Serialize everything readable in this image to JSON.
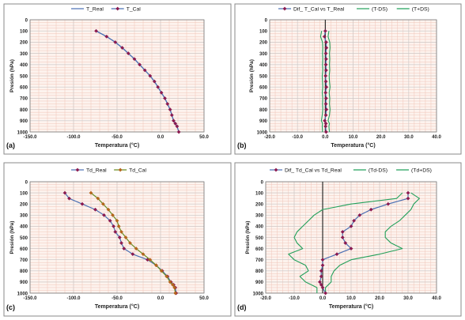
{
  "chart_data": [
    {
      "type": "line",
      "panel_label": "(a)",
      "xlabel": "Temperatura (°C)",
      "ylabel": "Presión (hPa)",
      "xlim": [
        -150,
        50
      ],
      "ylim": [
        1000,
        0
      ],
      "y_inverted": true,
      "xticks": [
        -150,
        -100,
        -50,
        0,
        50
      ],
      "xtick_labels": [
        "-150.0",
        "-100.0",
        "-50.0",
        "0.0",
        "50.0"
      ],
      "yticks": [
        0,
        100,
        200,
        300,
        400,
        500,
        600,
        700,
        800,
        900,
        1000
      ],
      "ytick_labels": [
        "0",
        "100",
        "200",
        "300",
        "400",
        "500",
        "600",
        "700",
        "800",
        "900",
        "1000"
      ],
      "grid": true,
      "legend_position": "top",
      "colors": {
        "T_Real": "#4a6fb3",
        "T_Cal": "#8b1a4f"
      },
      "series": [
        {
          "name": "T_Real",
          "marker": "none",
          "x": [
            -74,
            -62,
            -52,
            -44,
            -37,
            -30,
            -24,
            -18,
            -12,
            -7,
            -3,
            1,
            5,
            8,
            11,
            13,
            15,
            17,
            19,
            21
          ],
          "y": [
            100,
            150,
            200,
            250,
            300,
            350,
            400,
            450,
            500,
            550,
            600,
            650,
            700,
            750,
            800,
            850,
            900,
            925,
            950,
            1000
          ]
        },
        {
          "name": "T_Cal",
          "marker": "diamond",
          "x": [
            -74,
            -62,
            -52,
            -44,
            -37,
            -30,
            -24,
            -18,
            -12,
            -7,
            -3,
            1,
            5,
            8,
            11,
            13,
            15,
            17,
            19,
            21
          ],
          "y": [
            100,
            150,
            200,
            250,
            300,
            350,
            400,
            450,
            500,
            550,
            600,
            650,
            700,
            750,
            800,
            850,
            900,
            925,
            950,
            1000
          ]
        }
      ]
    },
    {
      "type": "line",
      "panel_label": "(b)",
      "xlabel": "Temperatura (°C)",
      "ylabel": "Presión (hPa)",
      "xlim": [
        -20,
        40
      ],
      "ylim": [
        1000,
        0
      ],
      "y_inverted": true,
      "xticks": [
        -20,
        -10,
        0,
        10,
        20,
        30,
        40
      ],
      "xtick_labels": [
        "-20.0",
        "-10.0",
        "0.0",
        "10.0",
        "20.0",
        "30.0",
        "40.0"
      ],
      "yticks": [
        0,
        100,
        200,
        300,
        400,
        500,
        600,
        700,
        800,
        900,
        1000
      ],
      "ytick_labels": [
        "0",
        "100",
        "200",
        "300",
        "400",
        "500",
        "600",
        "700",
        "800",
        "900",
        "1000"
      ],
      "grid": true,
      "legend_position": "top",
      "zero_line": true,
      "colors": {
        "Dif": "#4a6fb3",
        "Dif_marker": "#8b1a4f",
        "band": "#22a05a"
      },
      "series": [
        {
          "name": "Dif_ T_Cal vs T_Real",
          "marker": "diamond",
          "x": [
            0,
            -0.3,
            0.3,
            0.4,
            0.2,
            0.3,
            0.2,
            0.3,
            0.1,
            0.2,
            0.4,
            0.1,
            0.3,
            0.2,
            0.4,
            0.2,
            -0.2,
            0.2,
            0.1,
            0.3
          ],
          "y": [
            100,
            150,
            200,
            250,
            300,
            350,
            400,
            450,
            500,
            550,
            600,
            650,
            700,
            750,
            800,
            850,
            900,
            925,
            950,
            1000
          ]
        },
        {
          "name": "(T-DS)",
          "marker": "none",
          "x": [
            -1.3,
            -1.7,
            -1.0,
            -0.9,
            -1.0,
            -0.9,
            -1.0,
            -0.9,
            -1.1,
            -1.0,
            -0.9,
            -1.1,
            -0.9,
            -1.0,
            -0.9,
            -1.1,
            -1.4,
            -1.0,
            -1.1,
            -1.0
          ],
          "y": [
            100,
            150,
            200,
            250,
            300,
            350,
            400,
            450,
            500,
            550,
            600,
            650,
            700,
            750,
            800,
            850,
            900,
            925,
            950,
            1000
          ]
        },
        {
          "name": "(T+DS)",
          "marker": "none",
          "x": [
            1.3,
            1.0,
            1.6,
            1.7,
            1.5,
            1.6,
            1.5,
            1.6,
            1.4,
            1.5,
            1.7,
            1.4,
            1.6,
            1.5,
            1.7,
            1.5,
            1.0,
            1.5,
            1.3,
            1.5
          ],
          "y": [
            100,
            150,
            200,
            250,
            300,
            350,
            400,
            450,
            500,
            550,
            600,
            650,
            700,
            750,
            800,
            850,
            900,
            925,
            950,
            1000
          ]
        }
      ]
    },
    {
      "type": "line",
      "panel_label": "(c)",
      "xlabel": "Temperatura (°C)",
      "ylabel": "Presión (hPa)",
      "xlim": [
        -150,
        50
      ],
      "ylim": [
        1000,
        0
      ],
      "y_inverted": true,
      "xticks": [
        -150,
        -100,
        -50,
        0,
        50
      ],
      "xtick_labels": [
        "-150.0",
        "-100.0",
        "-50.0",
        "0.0",
        "50.0"
      ],
      "yticks": [
        0,
        100,
        200,
        300,
        400,
        500,
        600,
        700,
        800,
        900,
        1000
      ],
      "ytick_labels": [
        "0",
        "100",
        "200",
        "300",
        "400",
        "500",
        "600",
        "700",
        "800",
        "900",
        "1000"
      ],
      "grid": true,
      "legend_position": "top",
      "colors": {
        "Td_Real": "#4a6fb3",
        "Td_Real_marker": "#8b1a4f",
        "Td_Cal": "#6b8e23",
        "Td_Cal_marker": "#b5651d"
      },
      "series": [
        {
          "name": "Td_Real",
          "marker": "diamond",
          "x": [
            -110,
            -105,
            -90,
            -75,
            -65,
            -58,
            -54,
            -52,
            -47,
            -45,
            -42,
            -32,
            -15,
            -5,
            2,
            8,
            12,
            15,
            17,
            18
          ],
          "y": [
            100,
            150,
            200,
            250,
            300,
            350,
            400,
            450,
            500,
            550,
            600,
            650,
            700,
            750,
            800,
            850,
            900,
            925,
            950,
            1000
          ]
        },
        {
          "name": "Td_Cal",
          "marker": "diamond",
          "x": [
            -80,
            -72,
            -66,
            -60,
            -55,
            -50,
            -48,
            -45,
            -40,
            -35,
            -28,
            -20,
            -12,
            -5,
            1,
            7,
            11,
            14,
            16,
            17
          ],
          "y": [
            100,
            150,
            200,
            250,
            300,
            350,
            400,
            450,
            500,
            550,
            600,
            650,
            700,
            750,
            800,
            850,
            900,
            925,
            950,
            1000
          ]
        }
      ]
    },
    {
      "type": "line",
      "panel_label": "(d)",
      "xlabel": "Temperatura (°C)",
      "ylabel": "Presión (hPa)",
      "xlim": [
        -20,
        40
      ],
      "ylim": [
        1000,
        0
      ],
      "y_inverted": true,
      "xticks": [
        -20,
        -10,
        0,
        10,
        20,
        30,
        40
      ],
      "xtick_labels": [
        "-20.0",
        "-10.0",
        "0.0",
        "10.0",
        "20.0",
        "30.0",
        "40.0"
      ],
      "yticks": [
        0,
        100,
        200,
        300,
        400,
        500,
        600,
        700,
        800,
        900,
        1000
      ],
      "ytick_labels": [
        "0",
        "100",
        "200",
        "300",
        "400",
        "500",
        "600",
        "700",
        "800",
        "900",
        "1000"
      ],
      "grid": true,
      "legend_position": "top",
      "zero_line": true,
      "colors": {
        "Dif": "#4a6fb3",
        "Dif_marker": "#8b1a4f",
        "band": "#22a05a"
      },
      "series": [
        {
          "name": "Dif_ Td_Cal vs Td_Real",
          "marker": "diamond",
          "x": [
            30,
            30,
            23,
            17,
            13,
            11,
            10,
            7,
            7,
            8,
            10,
            5,
            0,
            0,
            -0.5,
            -0.5,
            -1,
            -0.5,
            0,
            1
          ],
          "y": [
            100,
            150,
            200,
            250,
            300,
            350,
            400,
            450,
            500,
            550,
            600,
            650,
            700,
            750,
            800,
            850,
            900,
            925,
            950,
            1000
          ]
        },
        {
          "name": "(Td-DS)",
          "marker": "none",
          "x": [
            28,
            26,
            10,
            0,
            -3,
            -5,
            -7,
            -9,
            -10,
            -9,
            -7,
            -12,
            -10,
            -6,
            -5,
            -8,
            -6,
            -4,
            -2,
            -2
          ],
          "y": [
            100,
            150,
            200,
            250,
            300,
            350,
            400,
            450,
            500,
            550,
            600,
            650,
            700,
            750,
            800,
            850,
            900,
            925,
            950,
            1000
          ]
        },
        {
          "name": "(Td+DS)",
          "marker": "none",
          "x": [
            31,
            34,
            32,
            31,
            29,
            27,
            24,
            22,
            22,
            24,
            28,
            20,
            10,
            6,
            4,
            3,
            3,
            2,
            1,
            1
          ],
          "y": [
            100,
            150,
            200,
            250,
            300,
            350,
            400,
            450,
            500,
            550,
            600,
            650,
            700,
            750,
            800,
            850,
            900,
            925,
            950,
            1000
          ]
        }
      ]
    }
  ]
}
